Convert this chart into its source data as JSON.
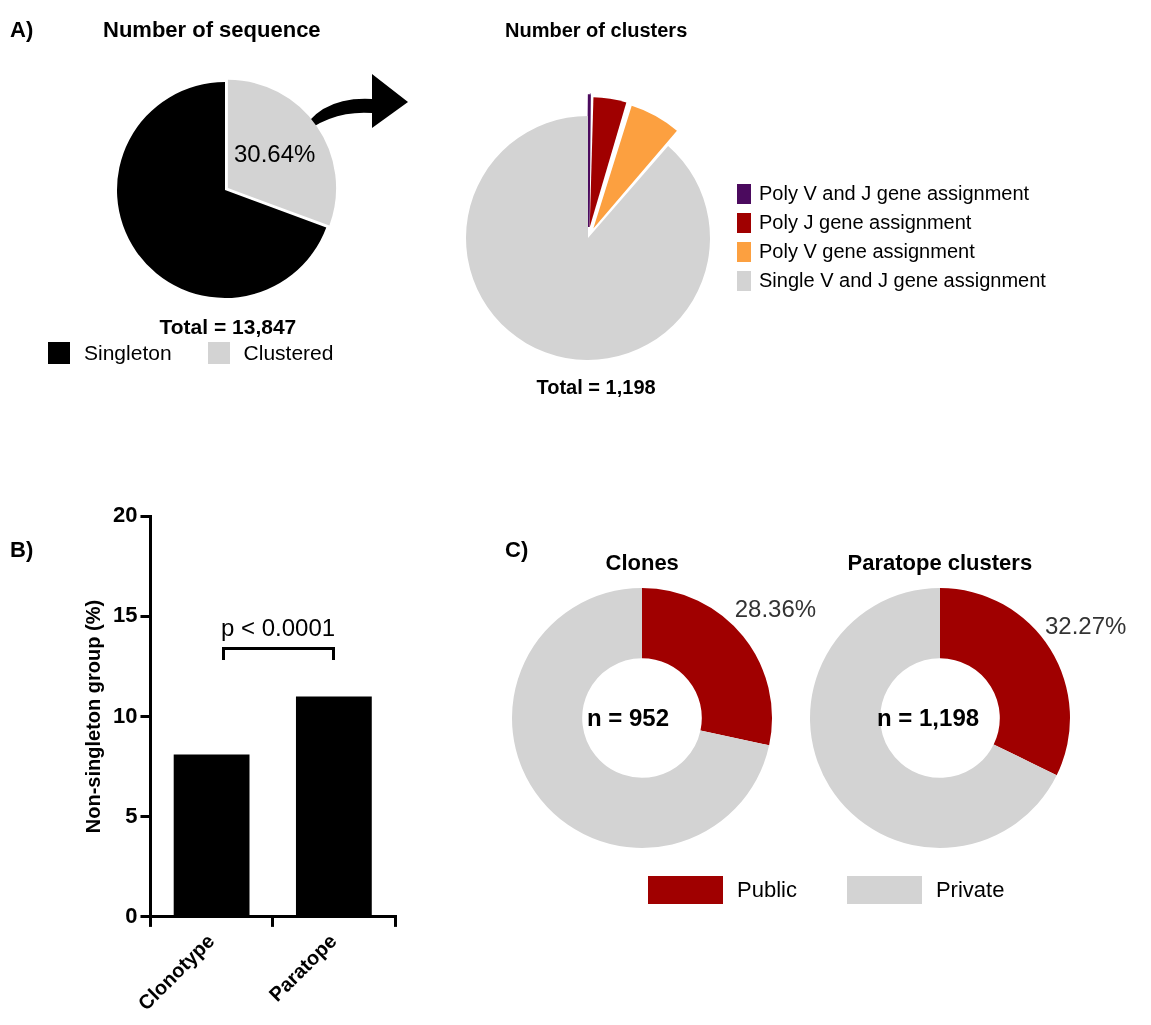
{
  "chart_data": [
    {
      "type": "pie",
      "title": "Number of sequence",
      "categories": [
        "Singleton",
        "Clustered"
      ],
      "values": [
        69.36,
        30.64
      ],
      "colors": [
        "#000000",
        "#d3d3d3"
      ],
      "value_labels": [
        null,
        "30.64%"
      ],
      "legend": "bottom",
      "annotations": [
        "A)",
        "Total = 13,847"
      ]
    },
    {
      "type": "pie",
      "title": "Number of clusters",
      "categories": [
        "Poly V and J gene assignment",
        "Poly J gene assignment",
        "Poly V gene assignment",
        "Single V and J gene assignment"
      ],
      "values": [
        0.3,
        4.4,
        6.7,
        88.6
      ],
      "colors": [
        "#4b0a5e",
        "#a00000",
        "#fca040",
        "#d3d3d3"
      ],
      "legend": "right",
      "annotations": [
        "Total = 1,198"
      ]
    },
    {
      "type": "bar",
      "categories": [
        "Clonotype",
        "Paratope"
      ],
      "values": [
        8.1,
        11.0
      ],
      "color": "#000000",
      "ylabel": "Non-singleton group (%)",
      "ylim": [
        0,
        20
      ],
      "yticks": [
        0,
        5,
        10,
        15,
        20
      ],
      "annotations": [
        "B)",
        "p < 0.0001"
      ]
    },
    {
      "type": "donut",
      "title": "Clones",
      "categories": [
        "Public",
        "Private"
      ],
      "values": [
        28.36,
        71.64
      ],
      "colors": [
        "#a00000",
        "#d3d3d3"
      ],
      "value_labels": [
        "28.36%",
        null
      ],
      "legend": "bottom",
      "annotations": [
        "C)",
        "n = 952"
      ]
    },
    {
      "type": "donut",
      "title": "Paratope clusters",
      "categories": [
        null,
        null
      ],
      "values": [
        32.27,
        67.73
      ],
      "colors": [
        "#a00000",
        "#d3d3d3"
      ],
      "value_labels": [
        "32.27%",
        null
      ],
      "annotations": [
        "n = 1,198"
      ]
    }
  ]
}
